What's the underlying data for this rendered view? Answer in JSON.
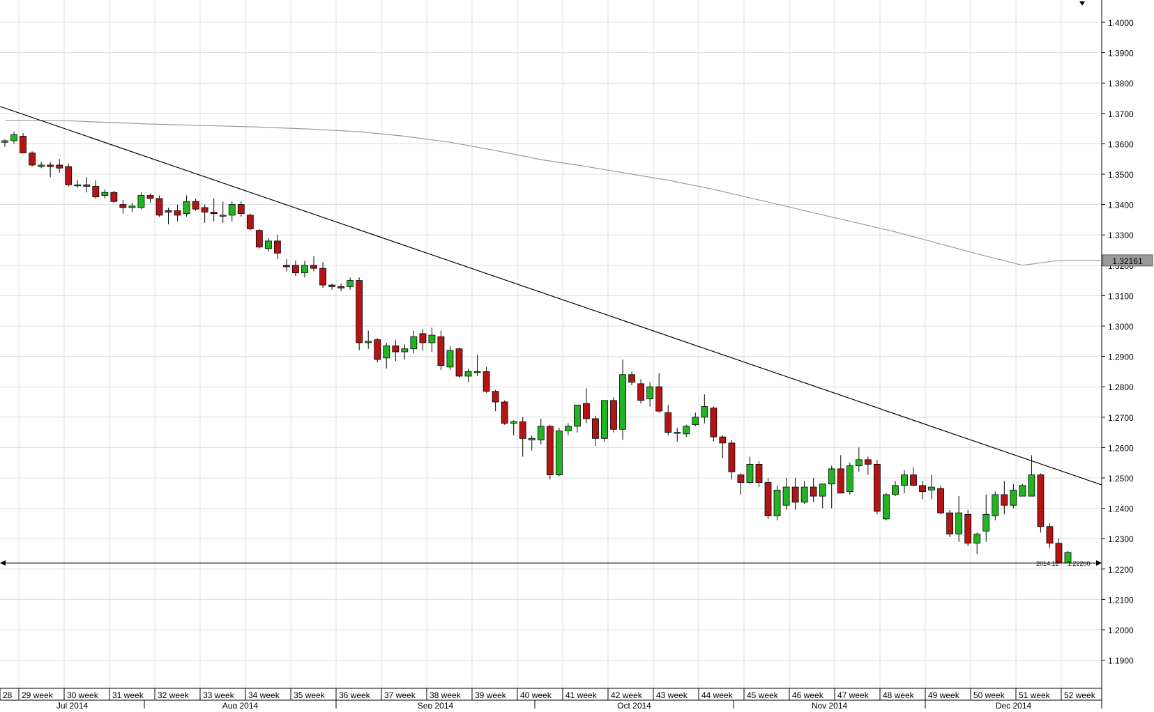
{
  "chart_data": {
    "type": "candlestick",
    "title": "",
    "xlabel": "",
    "ylabel": "",
    "ylim": [
      1.18,
      1.407
    ],
    "y_ticks": [
      1.19,
      1.2,
      1.21,
      1.22,
      1.23,
      1.24,
      1.25,
      1.26,
      1.27,
      1.28,
      1.29,
      1.3,
      1.31,
      1.32,
      1.33,
      1.34,
      1.35,
      1.36,
      1.37,
      1.38,
      1.39,
      1.4
    ],
    "y_tick_labels": [
      "1.1900",
      "1.2000",
      "1.2100",
      "1.2200",
      "1.2300",
      "1.2400",
      "1.2500",
      "1.2600",
      "1.2700",
      "1.2800",
      "1.2900",
      "1.3000",
      "1.3100",
      "1.3200",
      "1.3300",
      "1.3400",
      "1.3500",
      "1.3600",
      "1.3700",
      "1.3800",
      "1.3900",
      "1.4000"
    ],
    "week_labels": [
      "28",
      "29 week",
      "30 week",
      "31 week",
      "32 week",
      "33 week",
      "34 week",
      "35 week",
      "36 week",
      "37 week",
      "38 week",
      "39 week",
      "40 week",
      "41 week",
      "42 week",
      "43 week",
      "44 week",
      "45 week",
      "46 week",
      "47 week",
      "48 week",
      "49 week",
      "50 week",
      "51 week",
      "52 week"
    ],
    "month_labels": [
      "Jul 2014",
      "Aug 2014",
      "Sep 2014",
      "Oct 2014",
      "Nov 2014",
      "Dec 2014"
    ],
    "grid": true,
    "colors": {
      "up": "#22b422",
      "down": "#b41414",
      "wick": "#000000",
      "grid": "#dcdcdc",
      "ma": "#999999",
      "trend": "#000000"
    },
    "current_value_label": "1.32161",
    "support_level_label": "1.22200",
    "support_level_value": 1.222,
    "support_date_label": "2014.12",
    "series": [
      {
        "type": "candlestick",
        "ohlc": [
          [
            1.3605,
            1.3615,
            1.359,
            1.361
          ],
          [
            1.361,
            1.364,
            1.36,
            1.363
          ],
          [
            1.3625,
            1.3635,
            1.357,
            1.357
          ],
          [
            1.357,
            1.3575,
            1.3525,
            1.353
          ],
          [
            1.3525,
            1.354,
            1.352,
            1.353
          ],
          [
            1.353,
            1.354,
            1.349,
            1.3525
          ],
          [
            1.353,
            1.355,
            1.3505,
            1.352
          ],
          [
            1.3525,
            1.3535,
            1.346,
            1.3465
          ],
          [
            1.3465,
            1.348,
            1.3455,
            1.3465
          ],
          [
            1.3465,
            1.349,
            1.344,
            1.346
          ],
          [
            1.346,
            1.348,
            1.342,
            1.3425
          ],
          [
            1.343,
            1.345,
            1.342,
            1.344
          ],
          [
            1.344,
            1.3445,
            1.3405,
            1.341
          ],
          [
            1.34,
            1.3415,
            1.337,
            1.339
          ],
          [
            1.339,
            1.3405,
            1.3375,
            1.3395
          ],
          [
            1.339,
            1.344,
            1.3385,
            1.343
          ],
          [
            1.343,
            1.3435,
            1.3405,
            1.342
          ],
          [
            1.342,
            1.343,
            1.336,
            1.3365
          ],
          [
            1.338,
            1.339,
            1.3335,
            1.3375
          ],
          [
            1.338,
            1.34,
            1.3345,
            1.3365
          ],
          [
            1.337,
            1.343,
            1.336,
            1.341
          ],
          [
            1.341,
            1.342,
            1.338,
            1.3385
          ],
          [
            1.339,
            1.34,
            1.334,
            1.3375
          ],
          [
            1.3375,
            1.342,
            1.3345,
            1.337
          ],
          [
            1.3365,
            1.341,
            1.334,
            1.3365
          ],
          [
            1.3365,
            1.341,
            1.3345,
            1.34
          ],
          [
            1.34,
            1.341,
            1.336,
            1.337
          ],
          [
            1.3365,
            1.337,
            1.3315,
            1.332
          ],
          [
            1.3315,
            1.332,
            1.3255,
            1.326
          ],
          [
            1.3255,
            1.329,
            1.3245,
            1.328
          ],
          [
            1.328,
            1.33,
            1.322,
            1.324
          ],
          [
            1.32,
            1.322,
            1.318,
            1.3195
          ],
          [
            1.32,
            1.3215,
            1.3165,
            1.3175
          ],
          [
            1.3175,
            1.3215,
            1.316,
            1.32
          ],
          [
            1.32,
            1.323,
            1.318,
            1.319
          ],
          [
            1.319,
            1.321,
            1.3125,
            1.3135
          ],
          [
            1.3135,
            1.314,
            1.312,
            1.313
          ],
          [
            1.313,
            1.314,
            1.3115,
            1.3125
          ],
          [
            1.313,
            1.316,
            1.312,
            1.315
          ],
          [
            1.315,
            1.316,
            1.292,
            1.2945
          ],
          [
            1.2945,
            1.2985,
            1.2925,
            1.295
          ],
          [
            1.2955,
            1.296,
            1.288,
            1.289
          ],
          [
            1.2895,
            1.2945,
            1.286,
            1.2935
          ],
          [
            1.2935,
            1.2955,
            1.2885,
            1.2915
          ],
          [
            1.2915,
            1.294,
            1.289,
            1.2925
          ],
          [
            1.2925,
            1.2985,
            1.291,
            1.2965
          ],
          [
            1.2975,
            1.299,
            1.292,
            1.2945
          ],
          [
            1.2945,
            1.2995,
            1.2915,
            1.297
          ],
          [
            1.2965,
            1.2985,
            1.2855,
            1.287
          ],
          [
            1.2865,
            1.2935,
            1.2855,
            1.292
          ],
          [
            1.2925,
            1.293,
            1.283,
            1.2835
          ],
          [
            1.2835,
            1.286,
            1.2815,
            1.285
          ],
          [
            1.285,
            1.2905,
            1.2835,
            1.285
          ],
          [
            1.285,
            1.2865,
            1.278,
            1.2785
          ],
          [
            1.2785,
            1.279,
            1.272,
            1.275
          ],
          [
            1.275,
            1.2755,
            1.2675,
            1.268
          ],
          [
            1.268,
            1.269,
            1.264,
            1.2685
          ],
          [
            1.2685,
            1.27,
            1.257,
            1.263
          ],
          [
            1.2625,
            1.264,
            1.259,
            1.263
          ],
          [
            1.2625,
            1.2695,
            1.261,
            1.267
          ],
          [
            1.267,
            1.2675,
            1.2495,
            1.251
          ],
          [
            1.251,
            1.2665,
            1.2505,
            1.2655
          ],
          [
            1.2655,
            1.268,
            1.264,
            1.267
          ],
          [
            1.267,
            1.274,
            1.265,
            1.274
          ],
          [
            1.2745,
            1.2795,
            1.268,
            1.2695
          ],
          [
            1.2695,
            1.2705,
            1.2605,
            1.263
          ],
          [
            1.263,
            1.2755,
            1.262,
            1.2755
          ],
          [
            1.2755,
            1.2765,
            1.265,
            1.266
          ],
          [
            1.266,
            1.289,
            1.2625,
            1.284
          ],
          [
            1.284,
            1.285,
            1.2805,
            1.2815
          ],
          [
            1.281,
            1.2825,
            1.2745,
            1.2755
          ],
          [
            1.276,
            1.2815,
            1.2735,
            1.28
          ],
          [
            1.28,
            1.2845,
            1.2715,
            1.272
          ],
          [
            1.2715,
            1.274,
            1.264,
            1.265
          ],
          [
            1.265,
            1.2665,
            1.262,
            1.265
          ],
          [
            1.2645,
            1.2675,
            1.2635,
            1.267
          ],
          [
            1.2675,
            1.2715,
            1.267,
            1.27
          ],
          [
            1.27,
            1.2775,
            1.268,
            1.2735
          ],
          [
            1.273,
            1.2735,
            1.262,
            1.2635
          ],
          [
            1.2635,
            1.264,
            1.2565,
            1.2615
          ],
          [
            1.2615,
            1.2625,
            1.2495,
            1.252
          ],
          [
            1.251,
            1.2515,
            1.2445,
            1.2485
          ],
          [
            1.2485,
            1.257,
            1.248,
            1.2545
          ],
          [
            1.2545,
            1.2555,
            1.247,
            1.2485
          ],
          [
            1.2485,
            1.25,
            1.2365,
            1.2375
          ],
          [
            1.2375,
            1.2475,
            1.236,
            1.246
          ],
          [
            1.241,
            1.25,
            1.2395,
            1.247
          ],
          [
            1.247,
            1.25,
            1.2395,
            1.242
          ],
          [
            1.242,
            1.249,
            1.2415,
            1.247
          ],
          [
            1.247,
            1.25,
            1.242,
            1.244
          ],
          [
            1.244,
            1.248,
            1.24,
            1.248
          ],
          [
            1.248,
            1.254,
            1.24,
            1.253
          ],
          [
            1.253,
            1.2575,
            1.245,
            1.245
          ],
          [
            1.2455,
            1.255,
            1.2445,
            1.254
          ],
          [
            1.254,
            1.26,
            1.252,
            1.256
          ],
          [
            1.256,
            1.257,
            1.251,
            1.2545
          ],
          [
            1.2545,
            1.256,
            1.238,
            1.239
          ],
          [
            1.2365,
            1.245,
            1.236,
            1.2445
          ],
          [
            1.2445,
            1.249,
            1.244,
            1.2475
          ],
          [
            1.2475,
            1.2525,
            1.245,
            1.251
          ],
          [
            1.251,
            1.2535,
            1.2475,
            1.2475
          ],
          [
            1.2475,
            1.249,
            1.243,
            1.2455
          ],
          [
            1.246,
            1.251,
            1.243,
            1.247
          ],
          [
            1.2465,
            1.2475,
            1.238,
            1.2385
          ],
          [
            1.2385,
            1.2395,
            1.2305,
            1.2315
          ],
          [
            1.2315,
            1.244,
            1.229,
            1.2385
          ],
          [
            1.238,
            1.2395,
            1.2275,
            1.2285
          ],
          [
            1.2285,
            1.232,
            1.225,
            1.2315
          ],
          [
            1.2325,
            1.2445,
            1.229,
            1.238
          ],
          [
            1.2375,
            1.2455,
            1.236,
            1.2445
          ],
          [
            1.2445,
            1.249,
            1.238,
            1.241
          ],
          [
            1.241,
            1.248,
            1.24,
            1.246
          ],
          [
            1.244,
            1.248,
            1.244,
            1.2475
          ],
          [
            1.244,
            1.2575,
            1.244,
            1.251
          ],
          [
            1.251,
            1.2515,
            1.232,
            1.234
          ],
          [
            1.234,
            1.235,
            1.227,
            1.2285
          ],
          [
            1.2285,
            1.23,
            1.222,
            1.222
          ],
          [
            1.222,
            1.226,
            1.222,
            1.2255
          ]
        ]
      },
      {
        "type": "line",
        "role": "moving-average",
        "points": [
          [
            0,
            1.3677
          ],
          [
            6,
            1.3677
          ],
          [
            10,
            1.3672
          ],
          [
            16,
            1.3665
          ],
          [
            22,
            1.366
          ],
          [
            28,
            1.3655
          ],
          [
            34,
            1.3648
          ],
          [
            39,
            1.364
          ],
          [
            44,
            1.3625
          ],
          [
            49,
            1.3605
          ],
          [
            54,
            1.3578
          ],
          [
            59,
            1.3548
          ],
          [
            63,
            1.353
          ],
          [
            68,
            1.3505
          ],
          [
            73,
            1.348
          ],
          [
            78,
            1.345
          ],
          [
            83,
            1.3415
          ],
          [
            88,
            1.338
          ],
          [
            93,
            1.3345
          ],
          [
            98,
            1.331
          ],
          [
            103,
            1.327
          ],
          [
            108,
            1.323
          ],
          [
            112,
            1.32
          ],
          [
            116,
            1.3216
          ],
          [
            121,
            1.3216
          ]
        ]
      },
      {
        "type": "line",
        "role": "trendline",
        "points": [
          [
            0,
            1.3723
          ],
          [
            121,
            1.2477
          ]
        ]
      }
    ]
  }
}
